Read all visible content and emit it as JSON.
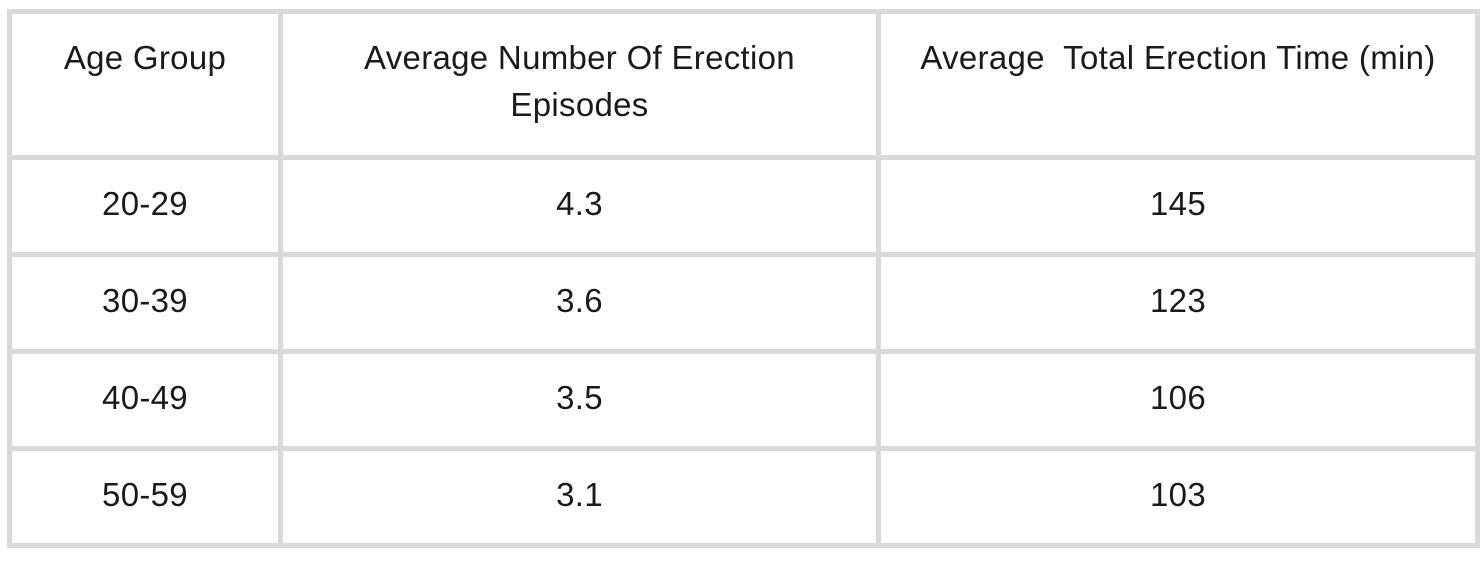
{
  "chart_data": {
    "type": "table",
    "columns": [
      "Age Group",
      "Average Number Of Erection Episodes",
      "Average  Total Erection Time (min)"
    ],
    "rows": [
      [
        "20-29",
        "4.3",
        "145"
      ],
      [
        "30-39",
        "3.6",
        "123"
      ],
      [
        "40-49",
        "3.5",
        "106"
      ],
      [
        "50-59",
        "3.1",
        "103"
      ]
    ],
    "layout": {
      "grid": "full",
      "header_position": "top",
      "cell_alignment": "center"
    }
  },
  "colors": {
    "border": "#d9d9d9",
    "text": "#1a1a1a",
    "background": "#ffffff"
  }
}
